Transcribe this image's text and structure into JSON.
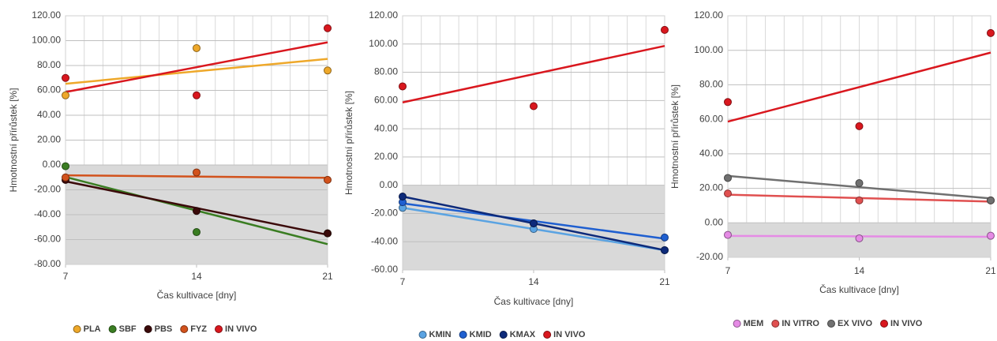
{
  "chart_data": [
    {
      "type": "scatter",
      "trendline": true,
      "grid": true,
      "shade_below_zero": true,
      "x_label": "Čas kultivace [dny]",
      "y_label": "Hmotnostní přírůstek [%]",
      "x": [
        7,
        14,
        21
      ],
      "xlim": [
        7,
        21
      ],
      "xticks": [
        7,
        14,
        21
      ],
      "ylim": [
        -80,
        120
      ],
      "yticks": [
        {
          "value": -80,
          "label": "-80.00"
        },
        {
          "value": -60,
          "label": "-60.00"
        },
        {
          "value": -40,
          "label": "-40.00"
        },
        {
          "value": -20,
          "label": "-20.00"
        },
        {
          "value": 0,
          "label": "0.00"
        },
        {
          "value": 20,
          "label": "20.00"
        },
        {
          "value": 40,
          "label": "40.00"
        },
        {
          "value": 60,
          "label": "60.00"
        },
        {
          "value": 80,
          "label": "80.00"
        },
        {
          "value": 100,
          "label": "100.00"
        },
        {
          "value": 120,
          "label": "120.00"
        }
      ],
      "series": [
        {
          "name": "PLA",
          "color": "#eea82a",
          "values": [
            56,
            94,
            76
          ]
        },
        {
          "name": "SBF",
          "color": "#3a7d22",
          "values": [
            -1,
            -54,
            -55
          ]
        },
        {
          "name": "PBS",
          "color": "#3b0a0a",
          "values": [
            -12,
            -37,
            -55
          ]
        },
        {
          "name": "FYZ",
          "color": "#d2521c",
          "values": [
            -10,
            -6,
            -12
          ]
        },
        {
          "name": "IN VIVO",
          "color": "#d9171e",
          "values": [
            70,
            56,
            110
          ]
        }
      ]
    },
    {
      "type": "scatter",
      "trendline": true,
      "grid": true,
      "shade_below_zero": true,
      "x_label": "Čas kultivace [dny]",
      "y_label": "Hmotnostní přírůstek [%]",
      "x": [
        7,
        14,
        21
      ],
      "xlim": [
        7,
        21
      ],
      "xticks": [
        7,
        14,
        21
      ],
      "ylim": [
        -60,
        120
      ],
      "yticks": [
        {
          "value": -60,
          "label": "-60.00"
        },
        {
          "value": -40,
          "label": "-40.00"
        },
        {
          "value": -20,
          "label": "-20.00"
        },
        {
          "value": 0,
          "label": "0.00"
        },
        {
          "value": 20,
          "label": "20.00"
        },
        {
          "value": 40,
          "label": "40.00"
        },
        {
          "value": 60,
          "label": "60.00"
        },
        {
          "value": 80,
          "label": "80.00"
        },
        {
          "value": 100,
          "label": "100.00"
        },
        {
          "value": 120,
          "label": "120.00"
        }
      ],
      "series": [
        {
          "name": "KMIN",
          "color": "#5aa3e2",
          "values": [
            -16,
            -31,
            -46
          ]
        },
        {
          "name": "KMID",
          "color": "#1f5fd0",
          "values": [
            -12,
            -27,
            -37
          ]
        },
        {
          "name": "KMAX",
          "color": "#0d2a7a",
          "values": [
            -8,
            -27,
            -46
          ]
        },
        {
          "name": "IN VIVO",
          "color": "#d9171e",
          "values": [
            70,
            56,
            110
          ]
        }
      ]
    },
    {
      "type": "scatter",
      "trendline": true,
      "grid": true,
      "shade_below_zero": true,
      "x_label": "Čas kultivace [dny]",
      "y_label": "Hmotnostní přírůstek [%]",
      "x": [
        7,
        14,
        21
      ],
      "xlim": [
        7,
        21
      ],
      "xticks": [
        7,
        14,
        21
      ],
      "ylim": [
        -20,
        120
      ],
      "yticks": [
        {
          "value": -20,
          "label": "-20.00"
        },
        {
          "value": 0,
          "label": "0.00"
        },
        {
          "value": 20,
          "label": "20.00"
        },
        {
          "value": 40,
          "label": "40.00"
        },
        {
          "value": 60,
          "label": "60.00"
        },
        {
          "value": 80,
          "label": "80.00"
        },
        {
          "value": 100,
          "label": "100.00"
        },
        {
          "value": 120,
          "label": "120.00"
        }
      ],
      "series": [
        {
          "name": "MEM",
          "color": "#e58be5",
          "values": [
            -7,
            -9,
            -7.5
          ]
        },
        {
          "name": "IN VITRO",
          "color": "#e05050",
          "values": [
            17,
            13,
            13
          ]
        },
        {
          "name": "EX VIVO",
          "color": "#707070",
          "values": [
            26,
            23,
            13
          ]
        },
        {
          "name": "IN VIVO",
          "color": "#d9171e",
          "values": [
            70,
            56,
            110
          ]
        }
      ]
    }
  ]
}
